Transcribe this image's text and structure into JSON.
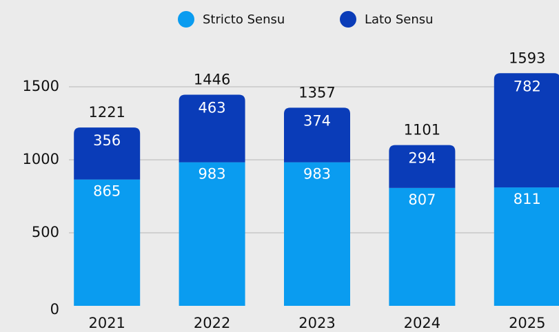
{
  "chart_data": {
    "type": "stacked_bar",
    "categories": [
      "2021",
      "2022",
      "2023",
      "2024",
      "2025"
    ],
    "series": [
      {
        "name": "Stricto Sensu",
        "color": "#0a9cf0",
        "values": [
          865,
          983,
          983,
          807,
          811
        ]
      },
      {
        "name": "Lato Sensu",
        "color": "#0a3cb8",
        "values": [
          356,
          463,
          374,
          294,
          782
        ]
      }
    ],
    "totals": [
      1221,
      1446,
      1357,
      1101,
      1593
    ],
    "ylim": [
      0,
      1500
    ],
    "yticks": [
      0,
      500,
      1000,
      1500
    ],
    "grid": true,
    "legend": "top"
  }
}
